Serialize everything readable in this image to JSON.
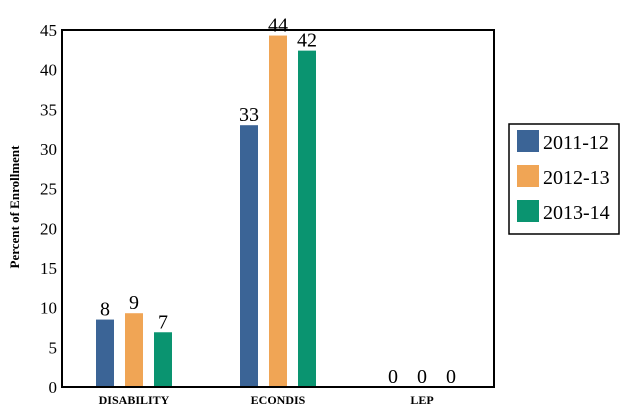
{
  "chart_data": {
    "type": "bar",
    "title": "",
    "xlabel": "",
    "ylabel": "Percent of Enrollment",
    "ylim": [
      0,
      45
    ],
    "yticks": [
      0,
      5,
      10,
      15,
      20,
      25,
      30,
      35,
      40,
      45
    ],
    "categories": [
      "DISABILITY",
      "ECONDIS",
      "LEP"
    ],
    "series": [
      {
        "name": "2011-12",
        "color": "#3b6496",
        "values": [
          8.5,
          33,
          0
        ],
        "labels": [
          "8",
          "33",
          "0"
        ]
      },
      {
        "name": "2012-13",
        "color": "#f0a555",
        "values": [
          9.3,
          44.3,
          0
        ],
        "labels": [
          "9",
          "44",
          "0"
        ]
      },
      {
        "name": "2013-14",
        "color": "#0a9470",
        "values": [
          6.9,
          42.4,
          0
        ],
        "labels": [
          "7",
          "42",
          "0"
        ]
      }
    ],
    "legend": "right",
    "grid": false
  }
}
